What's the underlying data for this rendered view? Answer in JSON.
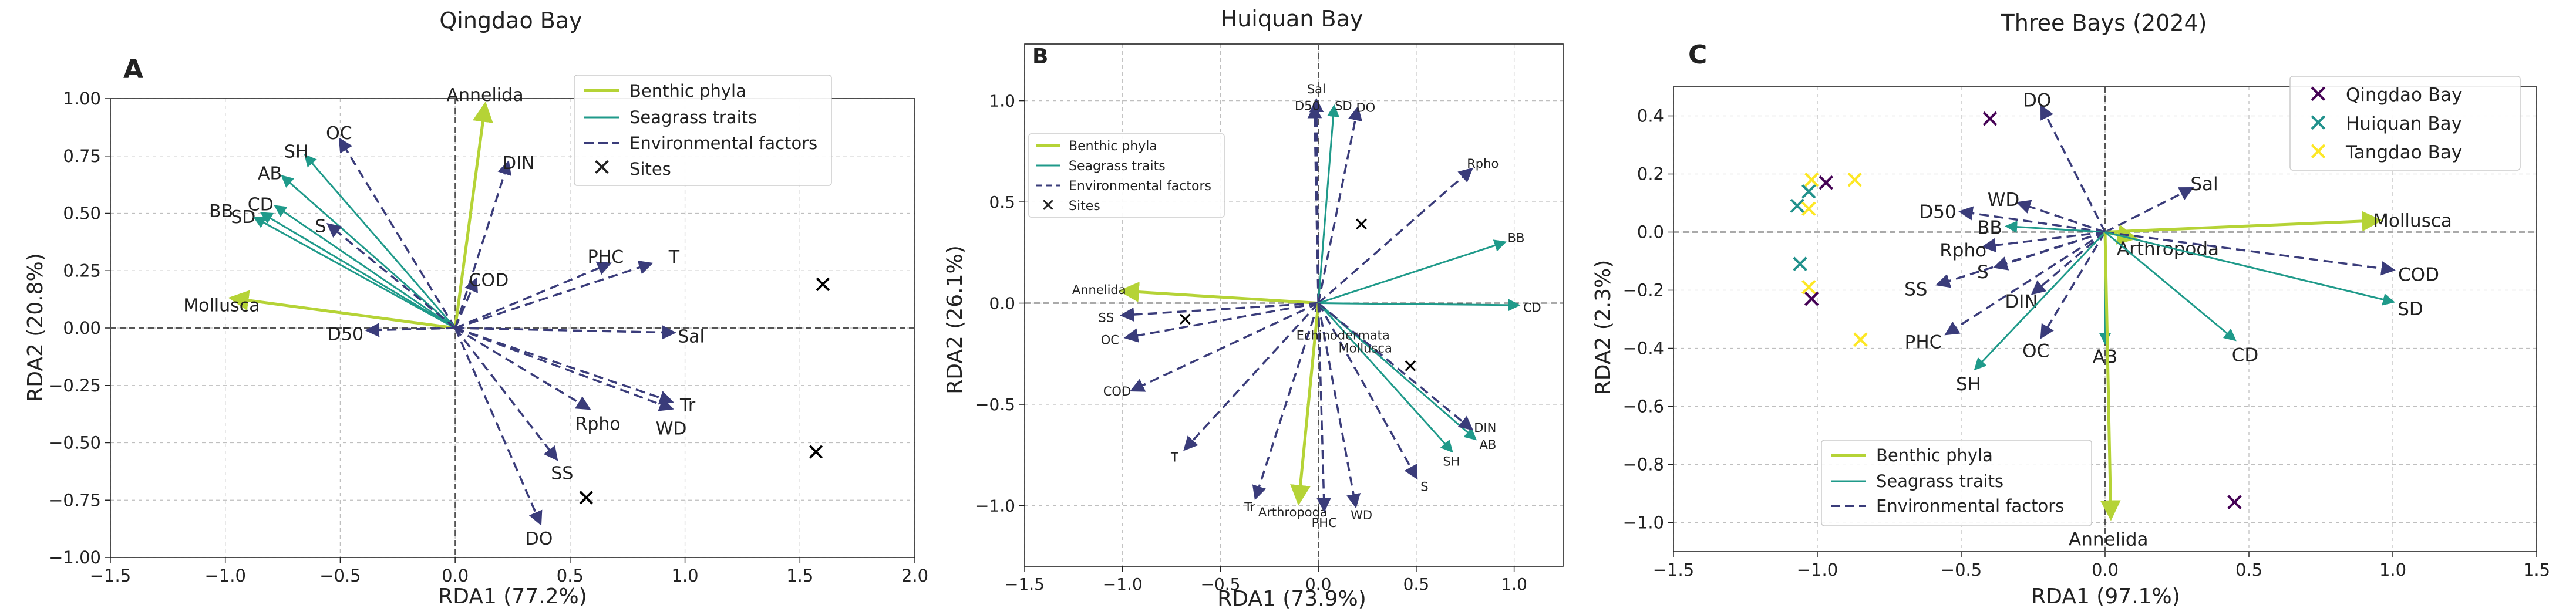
{
  "figure": {
    "layout": "three side-by-side RDA triplot panels"
  },
  "chart_data": [
    {
      "type": "scatter",
      "panel_letter": "A",
      "title": "Qingdao Bay",
      "xlabel": "RDA1 (77.2%)",
      "ylabel": "RDA2 (20.8%)",
      "xlim": [
        -1.5,
        2.0
      ],
      "ylim": [
        -1.0,
        1.0
      ],
      "xticks": [
        -1.5,
        -1.0,
        -0.5,
        0.0,
        0.5,
        1.0,
        1.5,
        2.0
      ],
      "yticks": [
        -1.0,
        -0.75,
        -0.5,
        -0.25,
        0.0,
        0.25,
        0.5,
        0.75,
        1.0
      ],
      "xtick_labels": [
        "−1.5",
        "−1.0",
        "−0.5",
        "0.0",
        "0.5",
        "1.0",
        "1.5",
        "2.0"
      ],
      "ytick_labels": [
        "−1.00",
        "−0.75",
        "−0.50",
        "−0.25",
        "0.00",
        "0.25",
        "0.50",
        "0.75",
        "1.00"
      ],
      "grid": true,
      "legend_position": "top-right",
      "legend": [
        {
          "label": "Benthic phyla",
          "kind": "benthic"
        },
        {
          "label": "Seagrass traits",
          "kind": "seagrass"
        },
        {
          "label": "Environmental factors",
          "kind": "env"
        },
        {
          "label": "Sites",
          "kind": "site"
        }
      ],
      "arrows": [
        {
          "label": "Annelida",
          "group": "benthic",
          "x": 0.13,
          "y": 0.97
        },
        {
          "label": "Mollusca",
          "group": "benthic",
          "x": -0.97,
          "y": 0.13
        },
        {
          "label": "OC",
          "group": "env",
          "x": -0.5,
          "y": 0.82
        },
        {
          "label": "SH",
          "group": "seagrass",
          "x": -0.65,
          "y": 0.75
        },
        {
          "label": "AB",
          "group": "seagrass",
          "x": -0.75,
          "y": 0.66
        },
        {
          "label": "CD",
          "group": "seagrass",
          "x": -0.78,
          "y": 0.53
        },
        {
          "label": "SD",
          "group": "seagrass",
          "x": -0.84,
          "y": 0.5
        },
        {
          "label": "BB",
          "group": "seagrass",
          "x": -0.87,
          "y": 0.48
        },
        {
          "label": "S",
          "group": "env",
          "x": -0.55,
          "y": 0.45
        },
        {
          "label": "DIN",
          "group": "env",
          "x": 0.23,
          "y": 0.72
        },
        {
          "label": "COD",
          "group": "env",
          "x": 0.09,
          "y": 0.21
        },
        {
          "label": "D50",
          "group": "env",
          "x": -0.38,
          "y": -0.01
        },
        {
          "label": "PHC",
          "group": "env",
          "x": 0.67,
          "y": 0.28
        },
        {
          "label": "T",
          "group": "env",
          "x": 0.85,
          "y": 0.28
        },
        {
          "label": "Sal",
          "group": "env",
          "x": 0.95,
          "y": -0.02
        },
        {
          "label": "Rpho",
          "group": "env",
          "x": 0.58,
          "y": -0.35
        },
        {
          "label": "Tr",
          "group": "env",
          "x": 0.94,
          "y": -0.32
        },
        {
          "label": "WD",
          "group": "env",
          "x": 0.94,
          "y": -0.35
        },
        {
          "label": "SS",
          "group": "env",
          "x": 0.44,
          "y": -0.57
        },
        {
          "label": "DO",
          "group": "env",
          "x": 0.37,
          "y": -0.85
        }
      ],
      "sites": [
        {
          "x": 1.6,
          "y": 0.19
        },
        {
          "x": 1.57,
          "y": -0.54
        },
        {
          "x": 0.57,
          "y": -0.74
        }
      ]
    },
    {
      "type": "scatter",
      "panel_letter": "B",
      "title": "Huiquan Bay",
      "xlabel": "RDA1 (73.9%)",
      "ylabel": "RDA2 (26.1%)",
      "xlim": [
        -1.5,
        1.25
      ],
      "ylim": [
        -1.3,
        1.28
      ],
      "xticks": [
        -1.5,
        -1.0,
        -0.5,
        0.0,
        0.5,
        1.0
      ],
      "yticks": [
        -1.0,
        -0.5,
        0.0,
        0.5,
        1.0
      ],
      "xtick_labels": [
        "−1.5",
        "−1.0",
        "−0.5",
        "0.0",
        "0.5",
        "1.0"
      ],
      "ytick_labels": [
        "−1.0",
        "−0.5",
        "0.0",
        "0.5",
        "1.0"
      ],
      "grid": true,
      "legend_position": "top-left",
      "legend": [
        {
          "label": "Benthic phyla",
          "kind": "benthic"
        },
        {
          "label": "Seagrass traits",
          "kind": "seagrass"
        },
        {
          "label": "Environmental factors",
          "kind": "env"
        },
        {
          "label": "Sites",
          "kind": "site"
        }
      ],
      "arrows": [
        {
          "label": "Sal",
          "group": "env",
          "x": -0.01,
          "y": 1.0
        },
        {
          "label": "D50",
          "group": "env",
          "x": -0.02,
          "y": 0.97
        },
        {
          "label": "SD",
          "group": "seagrass",
          "x": 0.08,
          "y": 0.97
        },
        {
          "label": "DO",
          "group": "env",
          "x": 0.2,
          "y": 0.96
        },
        {
          "label": "Rpho",
          "group": "env",
          "x": 0.78,
          "y": 0.66
        },
        {
          "label": "BB",
          "group": "seagrass",
          "x": 0.95,
          "y": 0.3
        },
        {
          "label": "CD",
          "group": "seagrass",
          "x": 1.02,
          "y": -0.01
        },
        {
          "label": "Annelida",
          "group": "benthic",
          "x": -1.0,
          "y": 0.06
        },
        {
          "label": "SS",
          "group": "env",
          "x": -1.0,
          "y": -0.06
        },
        {
          "label": "OC",
          "group": "env",
          "x": -0.98,
          "y": -0.17
        },
        {
          "label": "COD",
          "group": "env",
          "x": -0.95,
          "y": -0.43
        },
        {
          "label": "T",
          "group": "env",
          "x": -0.68,
          "y": -0.72
        },
        {
          "label": "Tr",
          "group": "env",
          "x": -0.32,
          "y": -0.96
        },
        {
          "label": "Arthropoda",
          "group": "benthic",
          "x": -0.1,
          "y": -0.98
        },
        {
          "label": "PHC",
          "group": "env",
          "x": 0.03,
          "y": -1.02
        },
        {
          "label": "WD",
          "group": "env",
          "x": 0.19,
          "y": -1.0
        },
        {
          "label": "S",
          "group": "env",
          "x": 0.5,
          "y": -0.86
        },
        {
          "label": "SH",
          "group": "seagrass",
          "x": 0.68,
          "y": -0.73
        },
        {
          "label": "AB",
          "group": "seagrass",
          "x": 0.8,
          "y": -0.67
        },
        {
          "label": "DIN",
          "group": "env",
          "x": 0.78,
          "y": -0.62
        }
      ],
      "centre_labels": [
        "Echinodermata",
        "Mollusca"
      ],
      "sites": [
        {
          "x": 0.22,
          "y": 0.39
        },
        {
          "x": -0.68,
          "y": -0.08
        },
        {
          "x": 0.47,
          "y": -0.31
        }
      ]
    },
    {
      "type": "scatter",
      "panel_letter": "C",
      "title": "Three Bays (2024)",
      "xlabel": "RDA1 (97.1%)",
      "ylabel": "RDA2 (2.3%)",
      "xlim": [
        -1.5,
        1.5
      ],
      "ylim": [
        -1.1,
        0.5
      ],
      "xticks": [
        -1.5,
        -1.0,
        -0.5,
        0.0,
        0.5,
        1.0,
        1.5
      ],
      "yticks": [
        -1.0,
        -0.8,
        -0.6,
        -0.4,
        -0.2,
        0.0,
        0.2,
        0.4
      ],
      "xtick_labels": [
        "−1.5",
        "−1.0",
        "−0.5",
        "0.0",
        "0.5",
        "1.0",
        "1.5"
      ],
      "ytick_labels": [
        "−1.0",
        "−0.8",
        "−0.6",
        "−0.4",
        "−0.2",
        "0.0",
        "0.2",
        "0.4"
      ],
      "grid": true,
      "legend_position": "bottom-left",
      "legend": [
        {
          "label": "Benthic phyla",
          "kind": "benthic"
        },
        {
          "label": "Seagrass traits",
          "kind": "seagrass"
        },
        {
          "label": "Environmental factors",
          "kind": "env"
        }
      ],
      "site_legend_position": "top-right",
      "site_legend": [
        {
          "label": "Qingdao Bay",
          "color": "#440154"
        },
        {
          "label": "Huiquan Bay",
          "color": "#21918c"
        },
        {
          "label": "Tangdao Bay",
          "color": "#fde725"
        }
      ],
      "arrows": [
        {
          "label": "DO",
          "group": "env",
          "x": -0.22,
          "y": 0.43
        },
        {
          "label": "Sal",
          "group": "env",
          "x": 0.3,
          "y": 0.15
        },
        {
          "label": "Mollusca",
          "group": "benthic",
          "x": 0.95,
          "y": 0.04
        },
        {
          "label": "WD",
          "group": "env",
          "x": -0.3,
          "y": 0.1
        },
        {
          "label": "D50",
          "group": "env",
          "x": -0.5,
          "y": 0.07
        },
        {
          "label": "BB",
          "group": "seagrass",
          "x": -0.34,
          "y": 0.02
        },
        {
          "label": "Rpho",
          "group": "env",
          "x": -0.42,
          "y": -0.05
        },
        {
          "label": "S",
          "group": "env",
          "x": -0.38,
          "y": -0.12
        },
        {
          "label": "SS",
          "group": "env",
          "x": -0.58,
          "y": -0.18
        },
        {
          "label": "DIN",
          "group": "env",
          "x": -0.25,
          "y": -0.21
        },
        {
          "label": "PHC",
          "group": "env",
          "x": -0.55,
          "y": -0.35
        },
        {
          "label": "OC",
          "group": "env",
          "x": -0.22,
          "y": -0.36
        },
        {
          "label": "SH",
          "group": "seagrass",
          "x": -0.45,
          "y": -0.47
        },
        {
          "label": "AB",
          "group": "seagrass",
          "x": 0.0,
          "y": -0.38
        },
        {
          "label": "Annelida",
          "group": "benthic",
          "x": 0.02,
          "y": -0.98
        },
        {
          "label": "Arthropoda",
          "group": "benthic",
          "x": 0.1,
          "y": -0.02
        },
        {
          "label": "COD",
          "group": "env",
          "x": 1.0,
          "y": -0.13
        },
        {
          "label": "SD",
          "group": "seagrass",
          "x": 1.0,
          "y": -0.24
        },
        {
          "label": "CD",
          "group": "seagrass",
          "x": 0.45,
          "y": -0.37
        }
      ],
      "sites": [
        {
          "bay": "Qingdao Bay",
          "x": -0.97,
          "y": 0.17
        },
        {
          "bay": "Qingdao Bay",
          "x": -1.02,
          "y": -0.23
        },
        {
          "bay": "Qingdao Bay",
          "x": -0.4,
          "y": 0.39
        },
        {
          "bay": "Qingdao Bay",
          "x": 0.45,
          "y": -0.93
        },
        {
          "bay": "Huiquan Bay",
          "x": -1.07,
          "y": 0.09
        },
        {
          "bay": "Huiquan Bay",
          "x": -1.03,
          "y": 0.14
        },
        {
          "bay": "Huiquan Bay",
          "x": -1.06,
          "y": -0.11
        },
        {
          "bay": "Tangdao Bay",
          "x": -1.03,
          "y": 0.08
        },
        {
          "bay": "Tangdao Bay",
          "x": -1.02,
          "y": 0.18
        },
        {
          "bay": "Tangdao Bay",
          "x": -0.87,
          "y": 0.18
        },
        {
          "bay": "Tangdao Bay",
          "x": -1.03,
          "y": -0.19
        },
        {
          "bay": "Tangdao Bay",
          "x": -0.85,
          "y": -0.37
        }
      ]
    }
  ]
}
